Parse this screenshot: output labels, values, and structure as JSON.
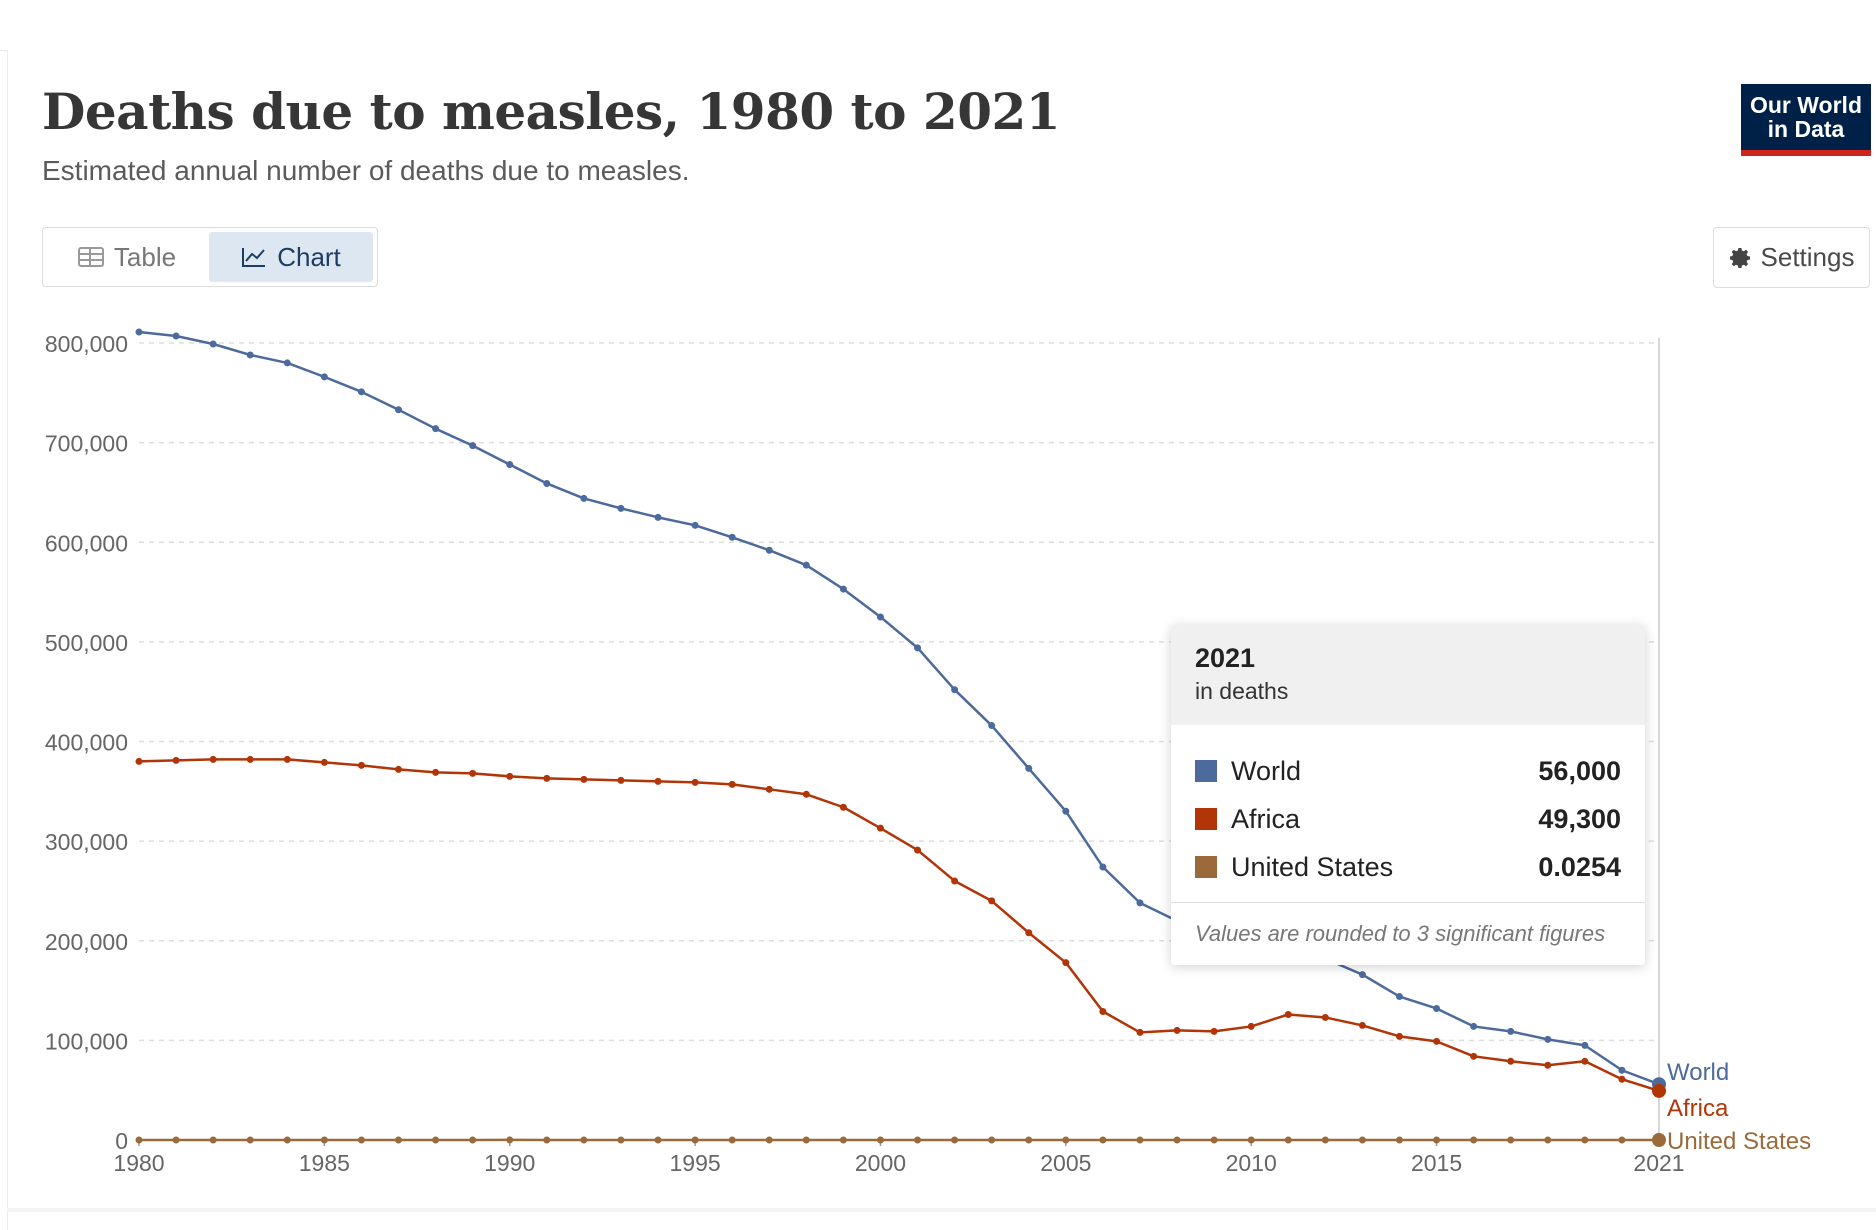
{
  "header": {
    "title": "Deaths due to measles, 1980 to 2021",
    "subtitle": "Estimated annual number of deaths due to measles.",
    "logo_line1": "Our World",
    "logo_line2": "in Data"
  },
  "toolbar": {
    "tabs": [
      {
        "label": "Table",
        "icon": "table-icon",
        "active": false
      },
      {
        "label": "Chart",
        "icon": "line-chart-icon",
        "active": true
      }
    ],
    "settings_label": "Settings",
    "settings_icon": "gear-icon"
  },
  "colors": {
    "World": "#4c6a9c",
    "Africa": "#b13507",
    "United States": "#9a6a3a",
    "brand": "#002147",
    "brand_accent": "#ce261e"
  },
  "tooltip": {
    "year": "2021",
    "unit": "in deaths",
    "rows": [
      {
        "name": "World",
        "value": "56,000"
      },
      {
        "name": "Africa",
        "value": "49,300"
      },
      {
        "name": "United States",
        "value": "0.0254"
      }
    ],
    "footnote": "Values are rounded to 3 significant figures"
  },
  "chart_data": {
    "type": "line",
    "title": "Deaths due to measles, 1980 to 2021",
    "subtitle": "Estimated annual number of deaths due to measles.",
    "xlabel": "",
    "ylabel": "",
    "x": [
      1980,
      1981,
      1982,
      1983,
      1984,
      1985,
      1986,
      1987,
      1988,
      1989,
      1990,
      1991,
      1992,
      1993,
      1994,
      1995,
      1996,
      1997,
      1998,
      1999,
      2000,
      2001,
      2002,
      2003,
      2004,
      2005,
      2006,
      2007,
      2008,
      2009,
      2010,
      2011,
      2012,
      2013,
      2014,
      2015,
      2016,
      2017,
      2018,
      2019,
      2020,
      2021
    ],
    "xlim": [
      1980,
      2021
    ],
    "ylim": [
      0,
      800000
    ],
    "x_ticks": [
      "1980",
      "1985",
      "1990",
      "1995",
      "2000",
      "2005",
      "2010",
      "2015",
      "2021"
    ],
    "y_ticks": [
      "0",
      "100,000",
      "200,000",
      "300,000",
      "400,000",
      "500,000",
      "600,000",
      "700,000",
      "800,000"
    ],
    "grid": true,
    "legend": "right-end labels",
    "series": [
      {
        "name": "World",
        "values": [
          811000,
          807000,
          799000,
          788000,
          780000,
          766000,
          751000,
          733000,
          714000,
          697000,
          678000,
          659000,
          644000,
          634000,
          625000,
          617000,
          605000,
          592000,
          577000,
          553000,
          525000,
          494000,
          452000,
          416000,
          373000,
          330000,
          274000,
          238000,
          220000,
          210000,
          203000,
          196000,
          182000,
          166000,
          144000,
          132000,
          114000,
          109000,
          101000,
          95000,
          70000,
          56000
        ]
      },
      {
        "name": "Africa",
        "values": [
          380000,
          381000,
          382000,
          382000,
          382000,
          379000,
          376000,
          372000,
          369000,
          368000,
          365000,
          363000,
          362000,
          361000,
          360000,
          359000,
          357000,
          352000,
          347000,
          334000,
          313000,
          291000,
          260000,
          240000,
          208000,
          178000,
          129000,
          108000,
          110000,
          109000,
          114000,
          126000,
          123000,
          115000,
          104000,
          99000,
          84000,
          79000,
          75000,
          79000,
          61000,
          49300
        ]
      },
      {
        "name": "United States",
        "values": [
          11,
          3,
          2,
          1,
          1,
          2,
          2,
          1,
          2,
          5,
          64,
          27,
          3,
          0.9,
          0.5,
          0.4,
          0.3,
          0.2,
          0.2,
          0.1,
          0.1,
          0.1,
          0.1,
          0.1,
          0.1,
          0.1,
          0.1,
          0.1,
          0.1,
          0.1,
          0.1,
          0.1,
          0.1,
          0.1,
          0.1,
          0.1,
          0.1,
          0.1,
          0.1,
          0.1,
          0.05,
          0.0254
        ]
      }
    ]
  }
}
